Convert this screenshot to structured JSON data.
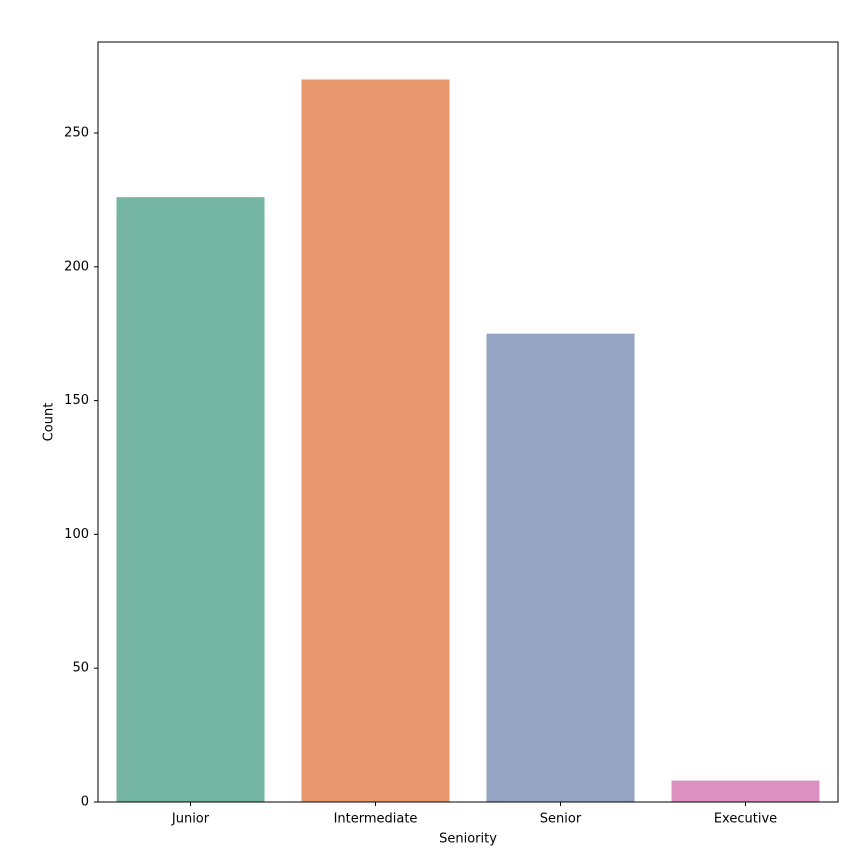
{
  "chart_data": {
    "type": "bar",
    "x_label": "Seniority",
    "y_label": "Count",
    "categories": [
      "Junior",
      "Intermediate",
      "Senior",
      "Executive"
    ],
    "values": [
      226,
      270,
      175,
      8
    ],
    "colors": [
      "#73b5a0",
      "#e9976f",
      "#95a4c3",
      "#dc91c1"
    ],
    "ylim": [
      0,
      284
    ],
    "yticks": [
      0,
      50,
      100,
      150,
      200,
      250
    ],
    "grid": false
  }
}
